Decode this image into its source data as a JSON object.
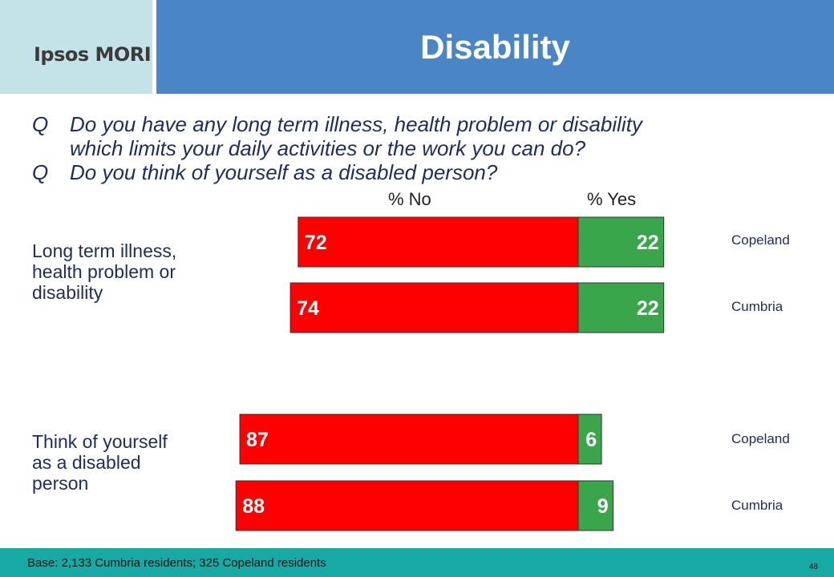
{
  "header": {
    "logo_text": "Ipsos MORI",
    "title": "Disability"
  },
  "questions": [
    {
      "prefix": "Q",
      "line1": "Do you have any long term illness, health problem or disability",
      "line2": "which limits your daily activities or the work you can do?"
    },
    {
      "prefix": "Q",
      "line1": "Do you think of yourself as a disabled person?"
    }
  ],
  "chart_data": {
    "type": "bar",
    "orientation": "horizontal-stacked",
    "column_headers": {
      "no": "% No",
      "yes": "% Yes"
    },
    "groups": [
      {
        "label": "Long term illness, health problem or disability",
        "bars": [
          {
            "region": "Copeland",
            "no": 72,
            "yes": 22
          },
          {
            "region": "Cumbria",
            "no": 74,
            "yes": 22
          }
        ]
      },
      {
        "label": "Think of yourself as a disabled person",
        "bars": [
          {
            "region": "Copeland",
            "no": 87,
            "yes": 6
          },
          {
            "region": "Cumbria",
            "no": 88,
            "yes": 9
          }
        ]
      }
    ],
    "colors": {
      "no": "#ff0000",
      "yes": "#3aa64c"
    }
  },
  "labels": {
    "group1_line1": "Long term illness,",
    "group1_line2": "health problem or",
    "group1_line3": "disability",
    "group2_line1": "Think of yourself",
    "group2_line2": "as a disabled",
    "group2_line3": "person"
  },
  "footer": {
    "base": "Base: 2,133 Cumbria residents; 325 Copeland residents",
    "page": "48"
  }
}
